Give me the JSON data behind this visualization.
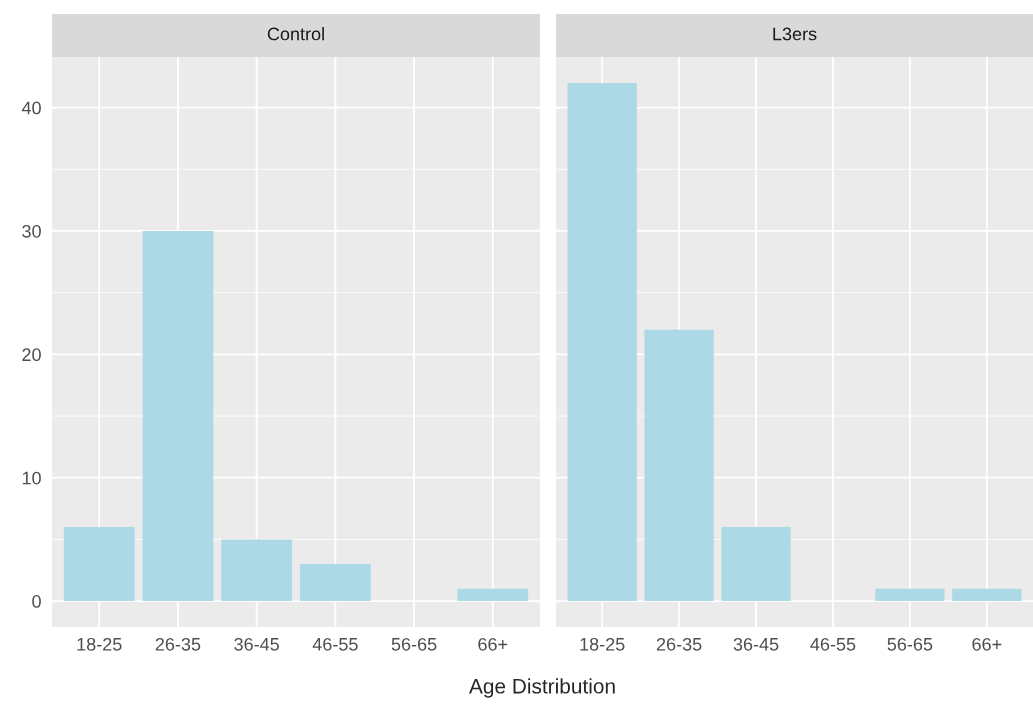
{
  "chart_data": [
    {
      "type": "bar",
      "title": "Control",
      "xlabel": "Age Distribution",
      "categories": [
        "18-25",
        "26-35",
        "36-45",
        "46-55",
        "56-65",
        "66+"
      ],
      "values": [
        6,
        30,
        5,
        3,
        null,
        1
      ],
      "color": "#add8e6",
      "ylim": [
        -2.1,
        44.1
      ],
      "yticks": [
        0,
        10,
        20,
        30,
        40
      ],
      "grid": true
    },
    {
      "type": "bar",
      "title": "L3ers",
      "categories": [
        "18-25",
        "26-35",
        "36-45",
        "46-55",
        "56-65",
        "66+"
      ],
      "values": [
        42,
        22,
        6,
        null,
        1,
        1
      ],
      "color": "#add8e6",
      "ylim": [
        -2.1,
        44.1
      ],
      "yticks": [
        0,
        10,
        20,
        30,
        40
      ],
      "grid": true,
      "tick_labels": "x"
    }
  ]
}
